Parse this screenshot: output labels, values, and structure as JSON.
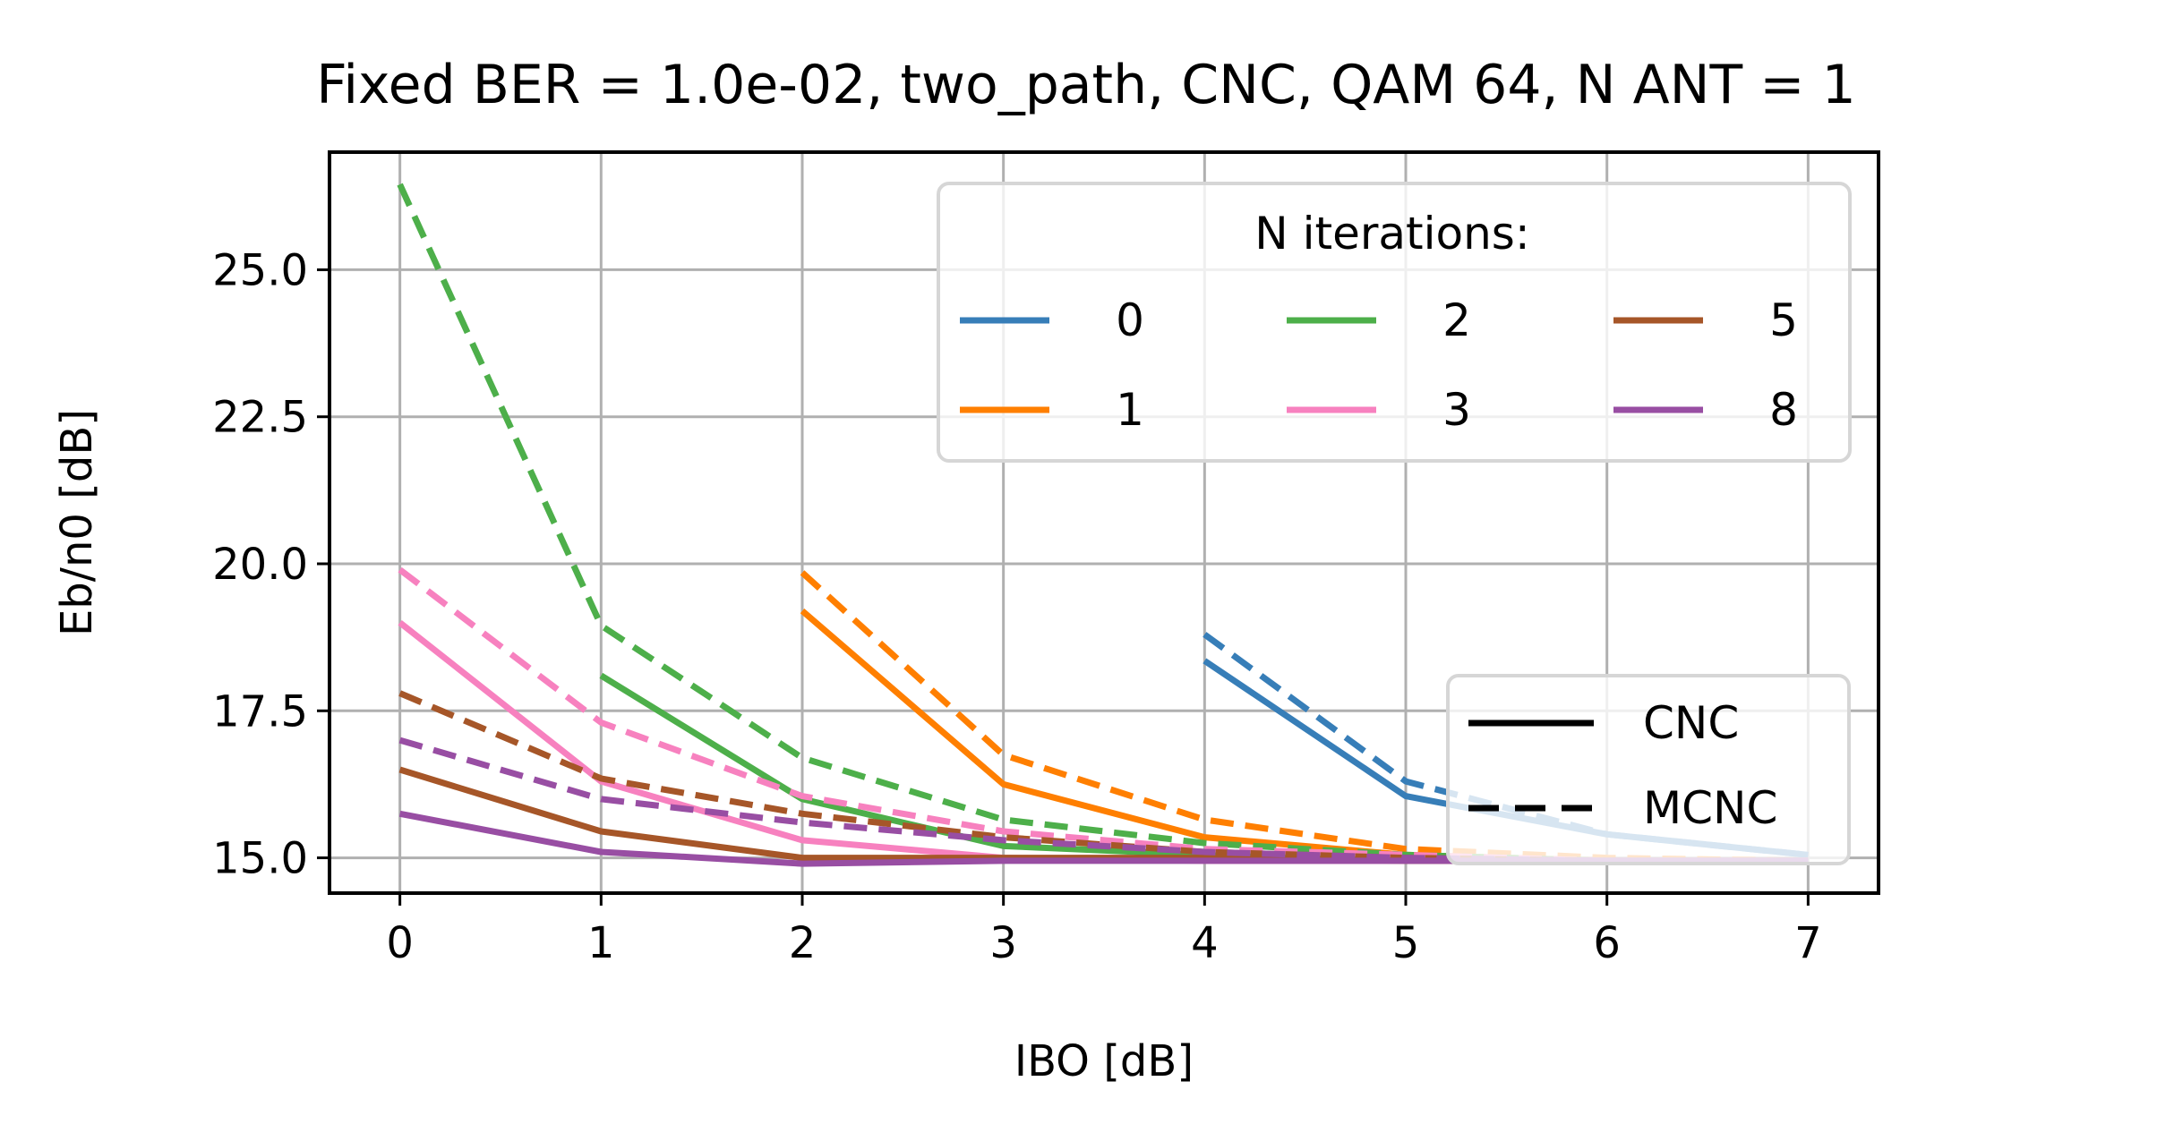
{
  "chart_data": {
    "type": "line",
    "title": "Fixed BER = 1.0e-02, two_path, CNC, QAM 64, N ANT = 1",
    "xlabel": "IBO [dB]",
    "ylabel": "Eb/n0 [dB]",
    "xlim": [
      -0.35,
      7.35
    ],
    "ylim": [
      14.4,
      27.0
    ],
    "xticks": [
      0,
      1,
      2,
      3,
      4,
      5,
      6,
      7
    ],
    "xtick_labels": [
      "0",
      "1",
      "2",
      "3",
      "4",
      "5",
      "6",
      "7"
    ],
    "yticks": [
      15.0,
      17.5,
      20.0,
      22.5,
      25.0
    ],
    "ytick_labels": [
      "15.0",
      "17.5",
      "20.0",
      "22.5",
      "25.0"
    ],
    "grid": true,
    "legend_iterations": {
      "title": "N iterations:",
      "placement": "upper-right",
      "entries": [
        {
          "label": "0",
          "color": "#377eb8"
        },
        {
          "label": "1",
          "color": "#ff7f00"
        },
        {
          "label": "2",
          "color": "#4daf4a"
        },
        {
          "label": "3",
          "color": "#f781bf"
        },
        {
          "label": "5",
          "color": "#a65628"
        },
        {
          "label": "8",
          "color": "#984ea3"
        }
      ]
    },
    "legend_methods": {
      "placement": "lower-right",
      "entries": [
        {
          "label": "CNC",
          "dash": "solid"
        },
        {
          "label": "MCNC",
          "dash": "dashed"
        }
      ]
    },
    "series": [
      {
        "name": "0",
        "method": "CNC",
        "color": "#377eb8",
        "dash": "solid",
        "x": [
          4,
          5,
          6,
          7
        ],
        "y": [
          18.35,
          16.05,
          15.4,
          15.05
        ]
      },
      {
        "name": "0",
        "method": "MCNC",
        "color": "#377eb8",
        "dash": "dashed",
        "x": [
          4,
          5,
          6,
          7
        ],
        "y": [
          18.8,
          16.3,
          15.4,
          15.05
        ]
      },
      {
        "name": "1",
        "method": "CNC",
        "color": "#ff7f00",
        "dash": "solid",
        "x": [
          2,
          3,
          4,
          5,
          6,
          7
        ],
        "y": [
          19.2,
          16.25,
          15.35,
          15.05,
          14.95,
          14.95
        ]
      },
      {
        "name": "1",
        "method": "MCNC",
        "color": "#ff7f00",
        "dash": "dashed",
        "x": [
          2,
          3,
          4,
          5,
          6,
          7
        ],
        "y": [
          19.85,
          16.75,
          15.65,
          15.15,
          15.0,
          14.95
        ]
      },
      {
        "name": "2",
        "method": "CNC",
        "color": "#4daf4a",
        "dash": "solid",
        "x": [
          1,
          2,
          3,
          4,
          5,
          6,
          7
        ],
        "y": [
          18.1,
          16.0,
          15.2,
          15.05,
          14.95,
          14.95,
          14.95
        ]
      },
      {
        "name": "2",
        "method": "MCNC",
        "color": "#4daf4a",
        "dash": "dashed",
        "x": [
          0,
          1,
          2,
          3,
          4,
          5,
          6,
          7
        ],
        "y": [
          26.45,
          18.95,
          16.7,
          15.65,
          15.25,
          15.05,
          14.95,
          14.95
        ]
      },
      {
        "name": "3",
        "method": "CNC",
        "color": "#f781bf",
        "dash": "solid",
        "x": [
          0,
          1,
          2,
          3,
          4,
          5,
          6,
          7
        ],
        "y": [
          19.0,
          16.3,
          15.3,
          15.0,
          14.95,
          14.95,
          14.95,
          14.95
        ]
      },
      {
        "name": "3",
        "method": "MCNC",
        "color": "#f781bf",
        "dash": "dashed",
        "x": [
          0,
          1,
          2,
          3,
          4,
          5,
          6,
          7
        ],
        "y": [
          19.9,
          17.3,
          16.05,
          15.45,
          15.15,
          15.05,
          14.95,
          14.95
        ]
      },
      {
        "name": "5",
        "method": "CNC",
        "color": "#a65628",
        "dash": "solid",
        "x": [
          0,
          1,
          2,
          3,
          4,
          5,
          6,
          7
        ],
        "y": [
          16.5,
          15.45,
          15.0,
          15.0,
          15.0,
          14.95,
          14.95,
          14.95
        ]
      },
      {
        "name": "5",
        "method": "MCNC",
        "color": "#a65628",
        "dash": "dashed",
        "x": [
          0,
          1,
          2,
          3,
          4,
          5,
          6,
          7
        ],
        "y": [
          17.8,
          16.35,
          15.75,
          15.35,
          15.1,
          15.0,
          14.95,
          14.95
        ]
      },
      {
        "name": "8",
        "method": "CNC",
        "color": "#984ea3",
        "dash": "solid",
        "x": [
          0,
          1,
          2,
          3,
          4,
          5,
          6,
          7
        ],
        "y": [
          15.75,
          15.1,
          14.9,
          14.95,
          14.95,
          14.95,
          14.95,
          14.95
        ]
      },
      {
        "name": "8",
        "method": "MCNC",
        "color": "#984ea3",
        "dash": "dashed",
        "x": [
          0,
          1,
          2,
          3,
          4,
          5,
          6,
          7
        ],
        "y": [
          17.0,
          16.0,
          15.6,
          15.3,
          15.1,
          15.0,
          14.95,
          14.95
        ]
      }
    ]
  }
}
